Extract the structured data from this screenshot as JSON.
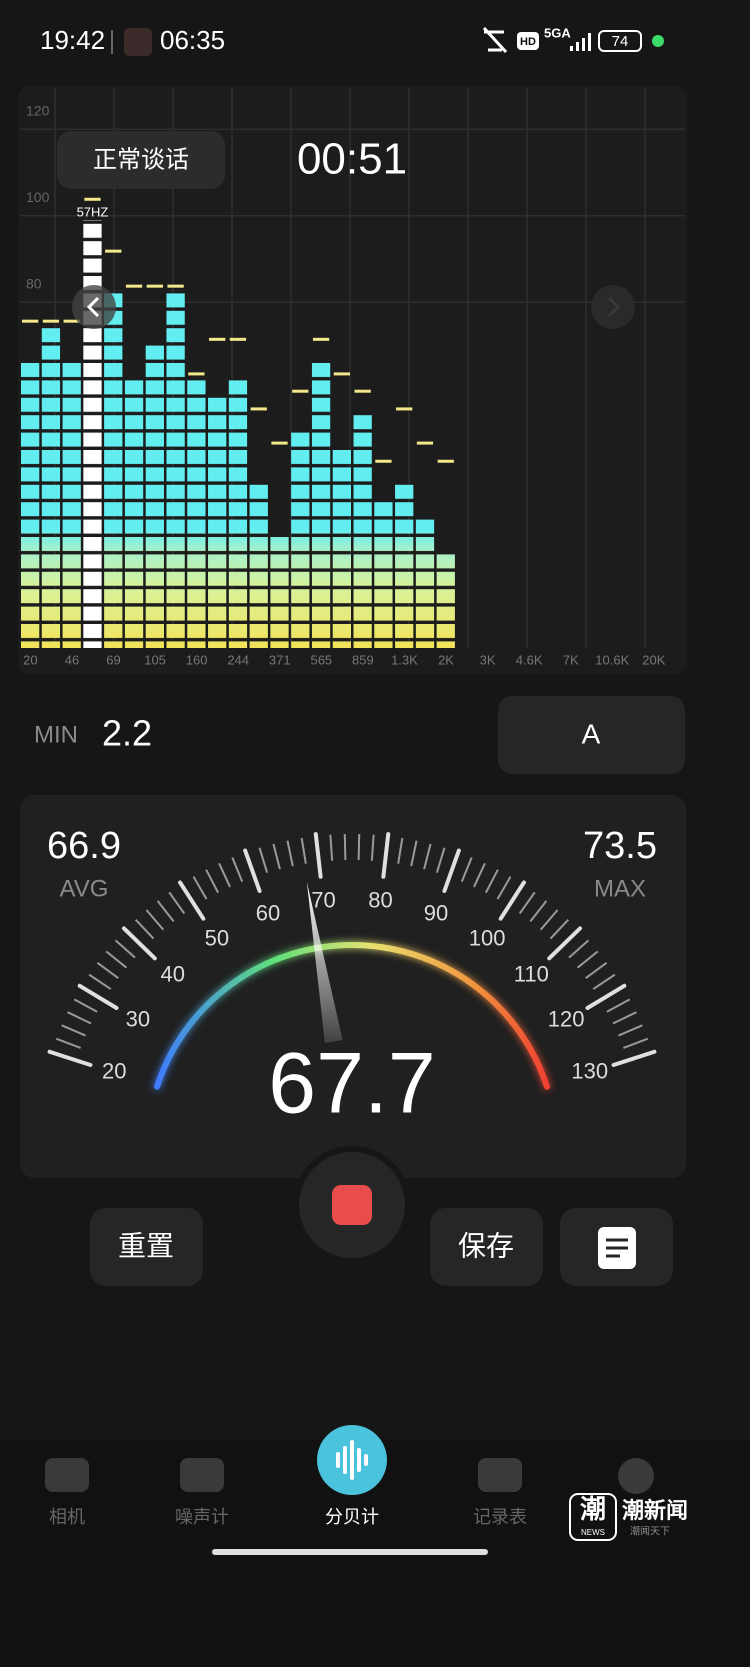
{
  "status_bar": {
    "time": "19:42",
    "media_time": "06:35",
    "hd": "HD",
    "network": "5GA",
    "battery": "74"
  },
  "spectrum": {
    "type": "bar",
    "mode_label": "正常谈话",
    "timer": "00:51",
    "peak_label": "57HZ",
    "ylim": [
      0,
      130
    ],
    "yticks": [
      80,
      100,
      120
    ],
    "x_labels": [
      "20",
      "46",
      "69",
      "105",
      "160",
      "244",
      "371",
      "565",
      "859",
      "1.3K",
      "2K",
      "3K",
      "4.6K",
      "7K",
      "10.6K",
      "20K"
    ],
    "values": [
      66.6,
      74.7,
      66.6,
      99,
      82.8,
      62.4,
      70.5,
      82.8,
      62.4,
      58.5,
      62.4,
      38.2,
      25.9,
      50.4,
      66.6,
      46.2,
      54.3,
      34.2,
      38.2,
      30.1,
      22
    ],
    "peaks": [
      75.6,
      75.6,
      75.6,
      103.8,
      91.8,
      83.7,
      83.7,
      83.7,
      63.4,
      71.4,
      71.4,
      55.3,
      47.4,
      59.4,
      71.4,
      63.4,
      59.4,
      43.2,
      55.3,
      47.4,
      43.2
    ],
    "highlight_index": 3,
    "peak_color": "#f3e98a",
    "highlight_color": "#ffffff"
  },
  "min": {
    "label": "MIN",
    "value": 2.2
  },
  "weighting": "A",
  "gauge": {
    "ticks": [
      20,
      30,
      40,
      50,
      60,
      70,
      80,
      90,
      100,
      110,
      120,
      130
    ],
    "value": 67.7,
    "avg": {
      "label": "AVG",
      "value": 66.9
    },
    "max": {
      "label": "MAX",
      "value": 73.5
    }
  },
  "buttons": {
    "reset": "重置",
    "save": "保存"
  },
  "nav": [
    {
      "label": "相机"
    },
    {
      "label": "噪声计"
    },
    {
      "label": "分贝计",
      "active": true
    },
    {
      "label": "记录表"
    }
  ],
  "watermark": {
    "logo": "潮",
    "name": "潮新闻",
    "sub": "NEWS",
    "slogan": "潮闻天下"
  }
}
